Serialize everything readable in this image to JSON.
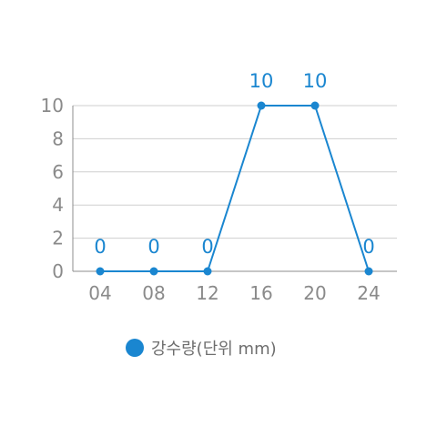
{
  "chart_data": {
    "type": "line",
    "categories": [
      "04",
      "08",
      "12",
      "16",
      "20",
      "24"
    ],
    "series": [
      {
        "name": "강수량(단위 mm)",
        "values": [
          0,
          0,
          0,
          10,
          10,
          0
        ]
      }
    ],
    "data_labels": [
      "0",
      "0",
      "0",
      "10",
      "10",
      "0"
    ],
    "ylim": [
      0,
      10
    ],
    "yticks": [
      "0",
      "2",
      "4",
      "6",
      "8",
      "10"
    ],
    "grid": true,
    "legend_position": "bottom",
    "title": "",
    "xlabel": "",
    "ylabel": ""
  },
  "colors": {
    "series": "#1a86d0",
    "axis_text": "#8a8a8a",
    "grid": "#cfcfcf",
    "legend_text": "#6e6e6e"
  }
}
